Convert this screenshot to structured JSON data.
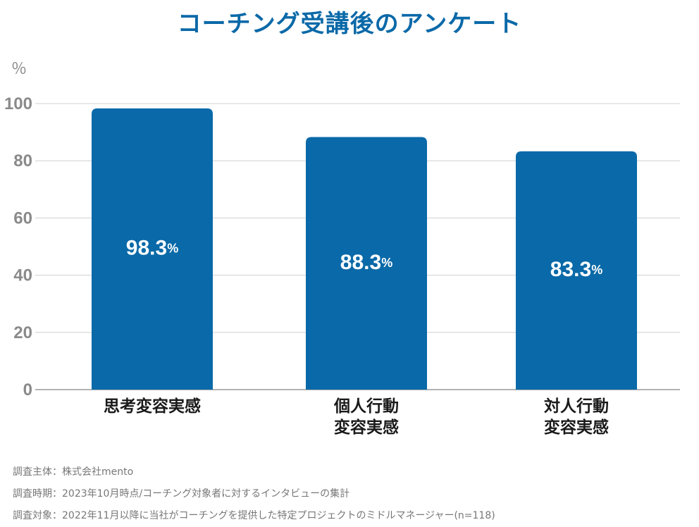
{
  "chart_data": {
    "type": "bar",
    "title": "コーチング受講後のアンケート",
    "ylabel": "％",
    "ylim": [
      0,
      100
    ],
    "yticks": [
      0,
      20,
      40,
      60,
      80,
      100
    ],
    "grid": true,
    "categories": [
      [
        "思考変容実感"
      ],
      [
        "個人行動",
        "変容実感"
      ],
      [
        "対人行動",
        "変容実感"
      ]
    ],
    "values": [
      98.3,
      88.3,
      83.3
    ],
    "value_labels": [
      "98.3",
      "88.3",
      "83.3"
    ],
    "value_suffix": "%",
    "bar_color": "#0a69a8"
  },
  "footnotes": [
    "調査主体：株式会社mento",
    "調査時期：2023年10月時点/コーチング対象者に対するインタビューの集計",
    "調査対象：2022年11月以降に当社がコーチングを提供した特定プロジェクトのミドルマネージャー(n=118)"
  ]
}
